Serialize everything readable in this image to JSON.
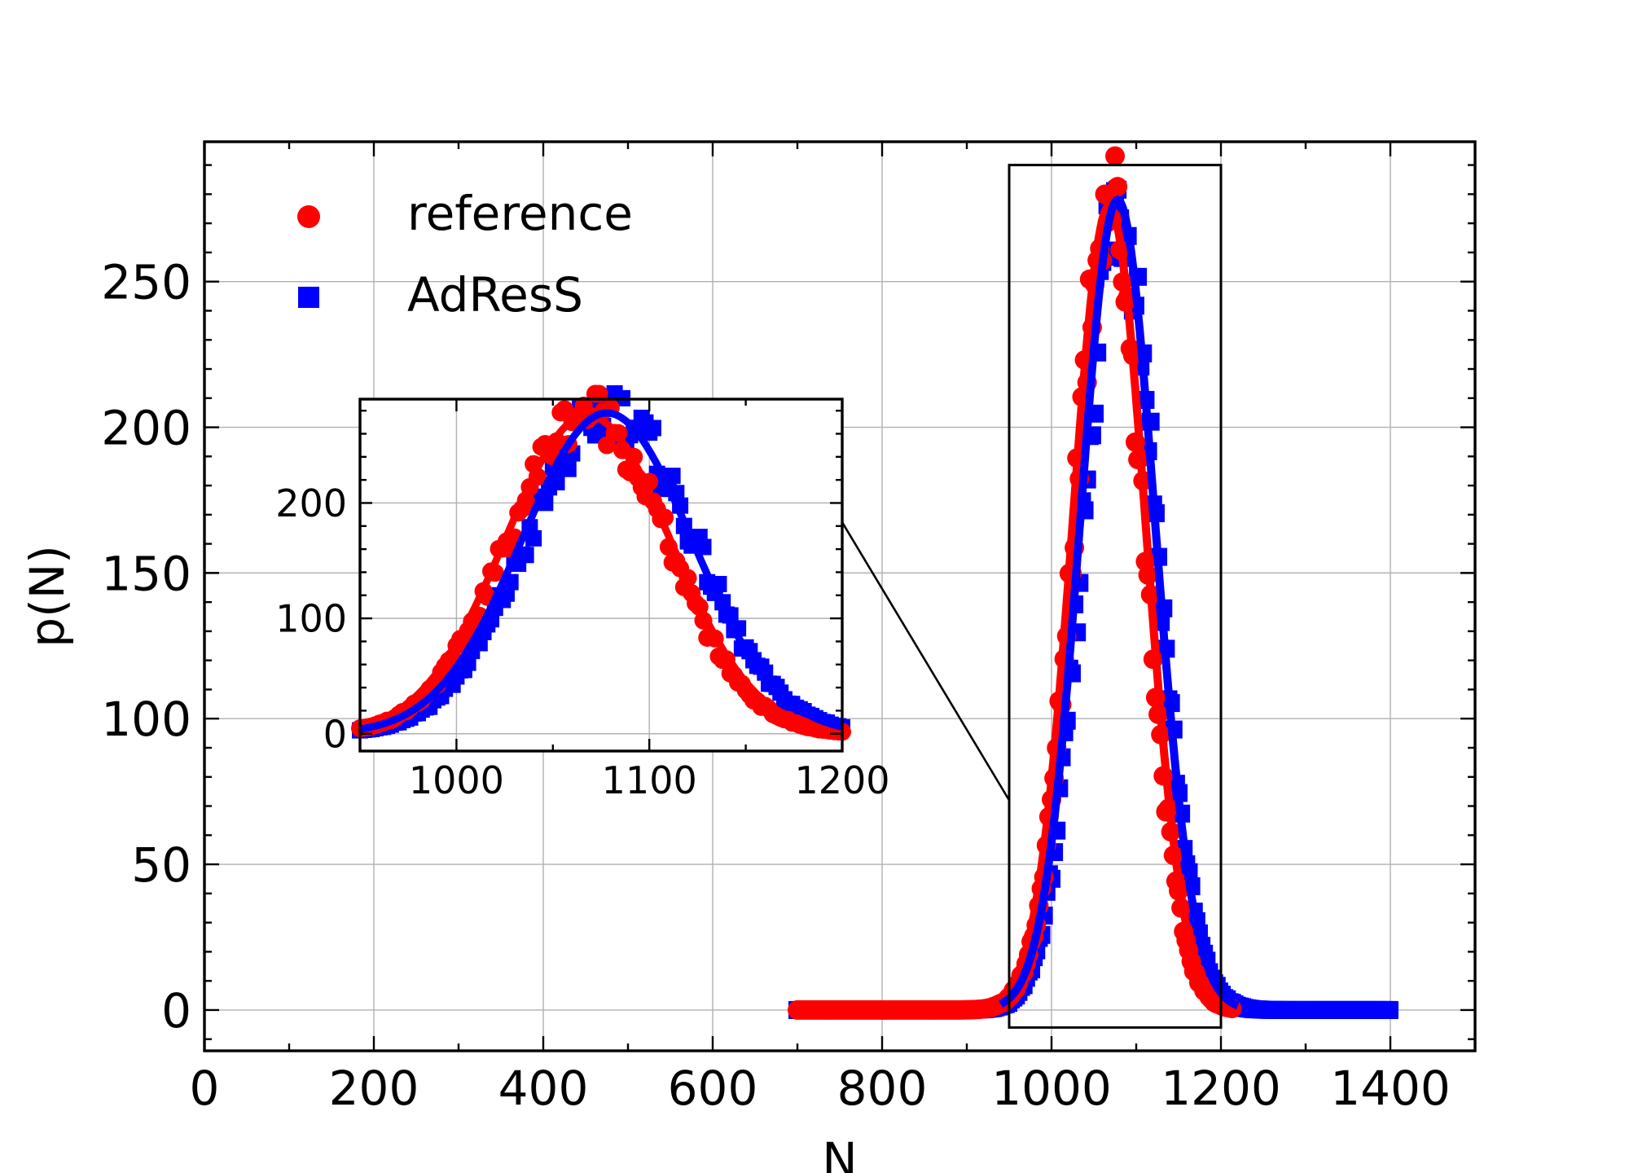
{
  "chart_data": [
    {
      "name": "main",
      "type": "scatter",
      "xlabel": "N",
      "ylabel": "p(N)",
      "xlim": [
        0,
        1500
      ],
      "ylim": [
        -14,
        298
      ],
      "xticks": [
        0,
        200,
        400,
        600,
        800,
        1000,
        1200,
        1400
      ],
      "yticks": [
        0,
        50,
        100,
        150,
        200,
        250
      ],
      "grid": true,
      "legend_position": "top-left",
      "series": [
        {
          "name": "reference",
          "marker": "circle",
          "color": "#ff0000",
          "model": {
            "N0": 700,
            "N1": 1215,
            "mean": 1068,
            "sd": 41,
            "peak": 280
          },
          "fit": {
            "mean": 1068,
            "sd": 43,
            "peak": 276
          }
        },
        {
          "name": "AdResS",
          "marker": "square",
          "color": "#0000ff",
          "model": {
            "N0": 700,
            "N1": 1400,
            "mean": 1080,
            "sd": 43,
            "peak": 278
          },
          "fit": {
            "mean": 1078,
            "sd": 44,
            "peak": 278
          }
        }
      ],
      "highlight_box": {
        "x": [
          950,
          1200
        ],
        "y": [
          -6,
          290
        ]
      }
    },
    {
      "name": "inset",
      "type": "scatter",
      "xlim": [
        950,
        1200
      ],
      "ylim": [
        -15,
        290
      ],
      "xticks": [
        1000,
        1100,
        1200
      ],
      "yticks": [
        0,
        100,
        200
      ],
      "grid": true
    }
  ],
  "legend": {
    "reference_label": "reference",
    "adress_label": "AdResS"
  }
}
